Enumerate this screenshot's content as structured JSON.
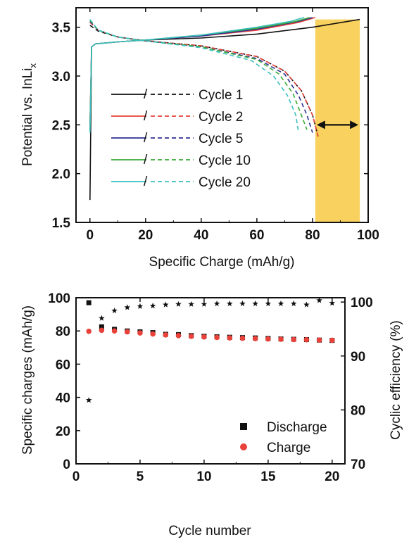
{
  "chart_data": [
    {
      "type": "line",
      "xlabel": "Specific Charge (mAh/g)",
      "ylabel": "Potential vs. InLi",
      "ylabel_sub": "x",
      "xlim": [
        -5,
        100
      ],
      "ylim": [
        1.5,
        3.7
      ],
      "xticks": [
        0,
        20,
        40,
        60,
        80,
        100
      ],
      "yticks": [
        1.5,
        2.0,
        2.5,
        3.0,
        3.5
      ],
      "tick_labels_x": [
        "0",
        "20",
        "40",
        "60",
        "80",
        "100"
      ],
      "tick_labels_y": [
        "1.5",
        "2.0",
        "2.5",
        "3.0",
        "3.5"
      ],
      "grid": false,
      "legend_position": "center-left",
      "legend_separator": "/",
      "highlight_region": {
        "x_range": [
          81,
          97
        ],
        "y_range": [
          1.5,
          3.58
        ],
        "color": "#F9D15E"
      },
      "arrow": {
        "x_range": [
          81,
          97
        ],
        "y": 2.5,
        "direction": "both"
      },
      "series": [
        {
          "name": "Cycle 1",
          "color": "#111111",
          "charge_solid": [
            [
              0,
              1.73
            ],
            [
              0.6,
              3.3
            ],
            [
              2,
              3.33
            ],
            [
              10,
              3.35
            ],
            [
              20,
              3.37
            ],
            [
              40,
              3.39
            ],
            [
              60,
              3.43
            ],
            [
              80,
              3.5
            ],
            [
              97,
              3.58
            ]
          ],
          "discharge_dashed": [
            [
              0,
              3.52
            ],
            [
              3,
              3.46
            ],
            [
              10,
              3.4
            ],
            [
              20,
              3.36
            ],
            [
              40,
              3.31
            ],
            [
              60,
              3.2
            ],
            [
              70,
              3.05
            ],
            [
              76,
              2.85
            ],
            [
              80,
              2.6
            ],
            [
              82,
              2.38
            ]
          ]
        },
        {
          "name": "Cycle 2",
          "color": "#E8423A",
          "charge_solid": [
            [
              0,
              2.5
            ],
            [
              0.6,
              3.3
            ],
            [
              2,
              3.33
            ],
            [
              10,
              3.35
            ],
            [
              20,
              3.37
            ],
            [
              40,
              3.41
            ],
            [
              60,
              3.47
            ],
            [
              75,
              3.55
            ],
            [
              81,
              3.6
            ]
          ],
          "discharge_dashed": [
            [
              0,
              3.55
            ],
            [
              3,
              3.47
            ],
            [
              10,
              3.4
            ],
            [
              20,
              3.36
            ],
            [
              40,
              3.31
            ],
            [
              60,
              3.2
            ],
            [
              70,
              3.05
            ],
            [
              76,
              2.85
            ],
            [
              80,
              2.6
            ],
            [
              82,
              2.38
            ]
          ]
        },
        {
          "name": "Cycle 5",
          "color": "#2E3192",
          "charge_solid": [
            [
              0,
              2.45
            ],
            [
              0.6,
              3.3
            ],
            [
              2,
              3.33
            ],
            [
              10,
              3.35
            ],
            [
              20,
              3.37
            ],
            [
              40,
              3.41
            ],
            [
              60,
              3.48
            ],
            [
              75,
              3.56
            ],
            [
              80,
              3.6
            ]
          ],
          "discharge_dashed": [
            [
              0,
              3.56
            ],
            [
              3,
              3.47
            ],
            [
              10,
              3.4
            ],
            [
              20,
              3.36
            ],
            [
              40,
              3.3
            ],
            [
              60,
              3.18
            ],
            [
              70,
              3.02
            ],
            [
              75,
              2.8
            ],
            [
              78,
              2.6
            ],
            [
              80,
              2.42
            ]
          ]
        },
        {
          "name": "Cycle 10",
          "color": "#3AAA35",
          "charge_solid": [
            [
              0,
              2.45
            ],
            [
              0.6,
              3.3
            ],
            [
              2,
              3.33
            ],
            [
              10,
              3.35
            ],
            [
              20,
              3.37
            ],
            [
              40,
              3.42
            ],
            [
              60,
              3.49
            ],
            [
              74,
              3.56
            ],
            [
              79,
              3.6
            ]
          ],
          "discharge_dashed": [
            [
              0,
              3.57
            ],
            [
              3,
              3.47
            ],
            [
              10,
              3.4
            ],
            [
              20,
              3.36
            ],
            [
              40,
              3.3
            ],
            [
              60,
              3.17
            ],
            [
              68,
              3.02
            ],
            [
              73,
              2.82
            ],
            [
              76,
              2.6
            ],
            [
              78,
              2.45
            ]
          ]
        },
        {
          "name": "Cycle 20",
          "color": "#3BBFBF",
          "charge_solid": [
            [
              0,
              2.42
            ],
            [
              0.6,
              3.3
            ],
            [
              2,
              3.33
            ],
            [
              10,
              3.35
            ],
            [
              20,
              3.37
            ],
            [
              40,
              3.42
            ],
            [
              60,
              3.5
            ],
            [
              72,
              3.56
            ],
            [
              77,
              3.6
            ]
          ],
          "discharge_dashed": [
            [
              0,
              3.58
            ],
            [
              3,
              3.47
            ],
            [
              10,
              3.4
            ],
            [
              20,
              3.36
            ],
            [
              40,
              3.29
            ],
            [
              58,
              3.16
            ],
            [
              66,
              3.0
            ],
            [
              71,
              2.8
            ],
            [
              74,
              2.6
            ],
            [
              75,
              2.42
            ]
          ]
        }
      ]
    },
    {
      "type": "scatter",
      "xlabel": "Cycle number",
      "ylabel": "Specific charges (mAh/g)",
      "ylabel_right": "Cyclic efficiency  (%)",
      "xlim": [
        0,
        21
      ],
      "ylim": [
        0,
        100
      ],
      "ylim_right": [
        70,
        100.8
      ],
      "xticks": [
        0,
        5,
        10,
        15,
        20
      ],
      "yticks": [
        0,
        20,
        40,
        60,
        80,
        100
      ],
      "yticks_right": [
        70,
        80,
        90,
        100
      ],
      "tick_labels_x": [
        "0",
        "5",
        "10",
        "15",
        "20"
      ],
      "tick_labels_y": [
        "0",
        "20",
        "40",
        "60",
        "80",
        "100"
      ],
      "tick_labels_y_right": [
        "70",
        "80",
        "90",
        "100"
      ],
      "grid": false,
      "legend_position": "bottom-right",
      "series": [
        {
          "name": "Discharge",
          "color": "#111111",
          "marker": "square",
          "axis": "left",
          "x": [
            1,
            2,
            3,
            4,
            5,
            6,
            7,
            8,
            9,
            10,
            11,
            12,
            13,
            14,
            15,
            16,
            17,
            18,
            19,
            20
          ],
          "y": [
            97,
            82.5,
            81,
            80,
            79.5,
            79,
            78,
            77.8,
            77.2,
            76.8,
            76.5,
            76.2,
            76,
            75.8,
            75.5,
            75.2,
            75,
            74.8,
            74.5,
            74.3
          ]
        },
        {
          "name": "Charge",
          "color": "#E8423A",
          "marker": "circle",
          "axis": "left",
          "x": [
            1,
            2,
            3,
            4,
            5,
            6,
            7,
            8,
            9,
            10,
            11,
            12,
            13,
            14,
            15,
            16,
            17,
            18,
            19,
            20
          ],
          "y": [
            79.8,
            80.4,
            80,
            79.5,
            78.8,
            78.2,
            77.6,
            77.2,
            76.8,
            76.4,
            76.1,
            75.8,
            75.6,
            75.4,
            75.2,
            75,
            74.8,
            74.7,
            74.5,
            74.4
          ]
        },
        {
          "name": "",
          "color": "#111111",
          "marker": "star",
          "axis": "right",
          "x": [
            1,
            2,
            3,
            4,
            5,
            6,
            7,
            8,
            9,
            10,
            11,
            12,
            13,
            14,
            15,
            16,
            17,
            18,
            19,
            20
          ],
          "y": [
            81.8,
            97,
            98.4,
            99,
            99.2,
            99.3,
            99.5,
            99.6,
            99.6,
            99.6,
            99.7,
            99.7,
            99.7,
            99.7,
            99.7,
            99.7,
            99.7,
            99.5,
            100.3,
            99.8
          ]
        }
      ]
    }
  ]
}
